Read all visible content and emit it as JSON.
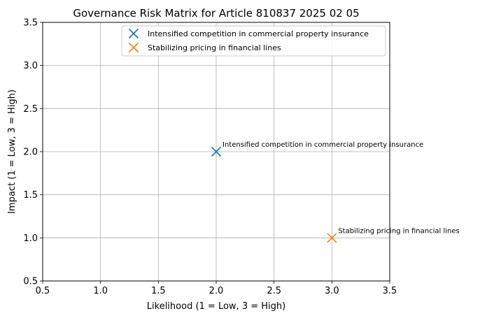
{
  "chart_data": {
    "type": "scatter",
    "title": "Governance Risk Matrix for Article 810837 2025 02 05",
    "xlabel": "Likelihood (1 = Low, 3 = High)",
    "ylabel": "Impact (1 = Low, 3 = High)",
    "xlim": [
      0.5,
      3.5
    ],
    "ylim": [
      0.5,
      3.5
    ],
    "xticks": [
      "0.5",
      "1.0",
      "1.5",
      "2.0",
      "2.5",
      "3.0",
      "3.5"
    ],
    "yticks": [
      "0.5",
      "1.0",
      "1.5",
      "2.0",
      "2.5",
      "3.0",
      "3.5"
    ],
    "grid": true,
    "legend_position": "top-right",
    "marker": "x",
    "series": [
      {
        "name": "Intensified competition in commercial property insurance",
        "color": "#1f77b4",
        "points": [
          {
            "x": 2.0,
            "y": 2.0,
            "label": "Intensified competition in commercial property insurance"
          }
        ]
      },
      {
        "name": "Stabilizing pricing in financial lines",
        "color": "#ff7f0e",
        "points": [
          {
            "x": 3.0,
            "y": 1.0,
            "label": "Stabilizing pricing in financial lines"
          }
        ]
      }
    ]
  }
}
